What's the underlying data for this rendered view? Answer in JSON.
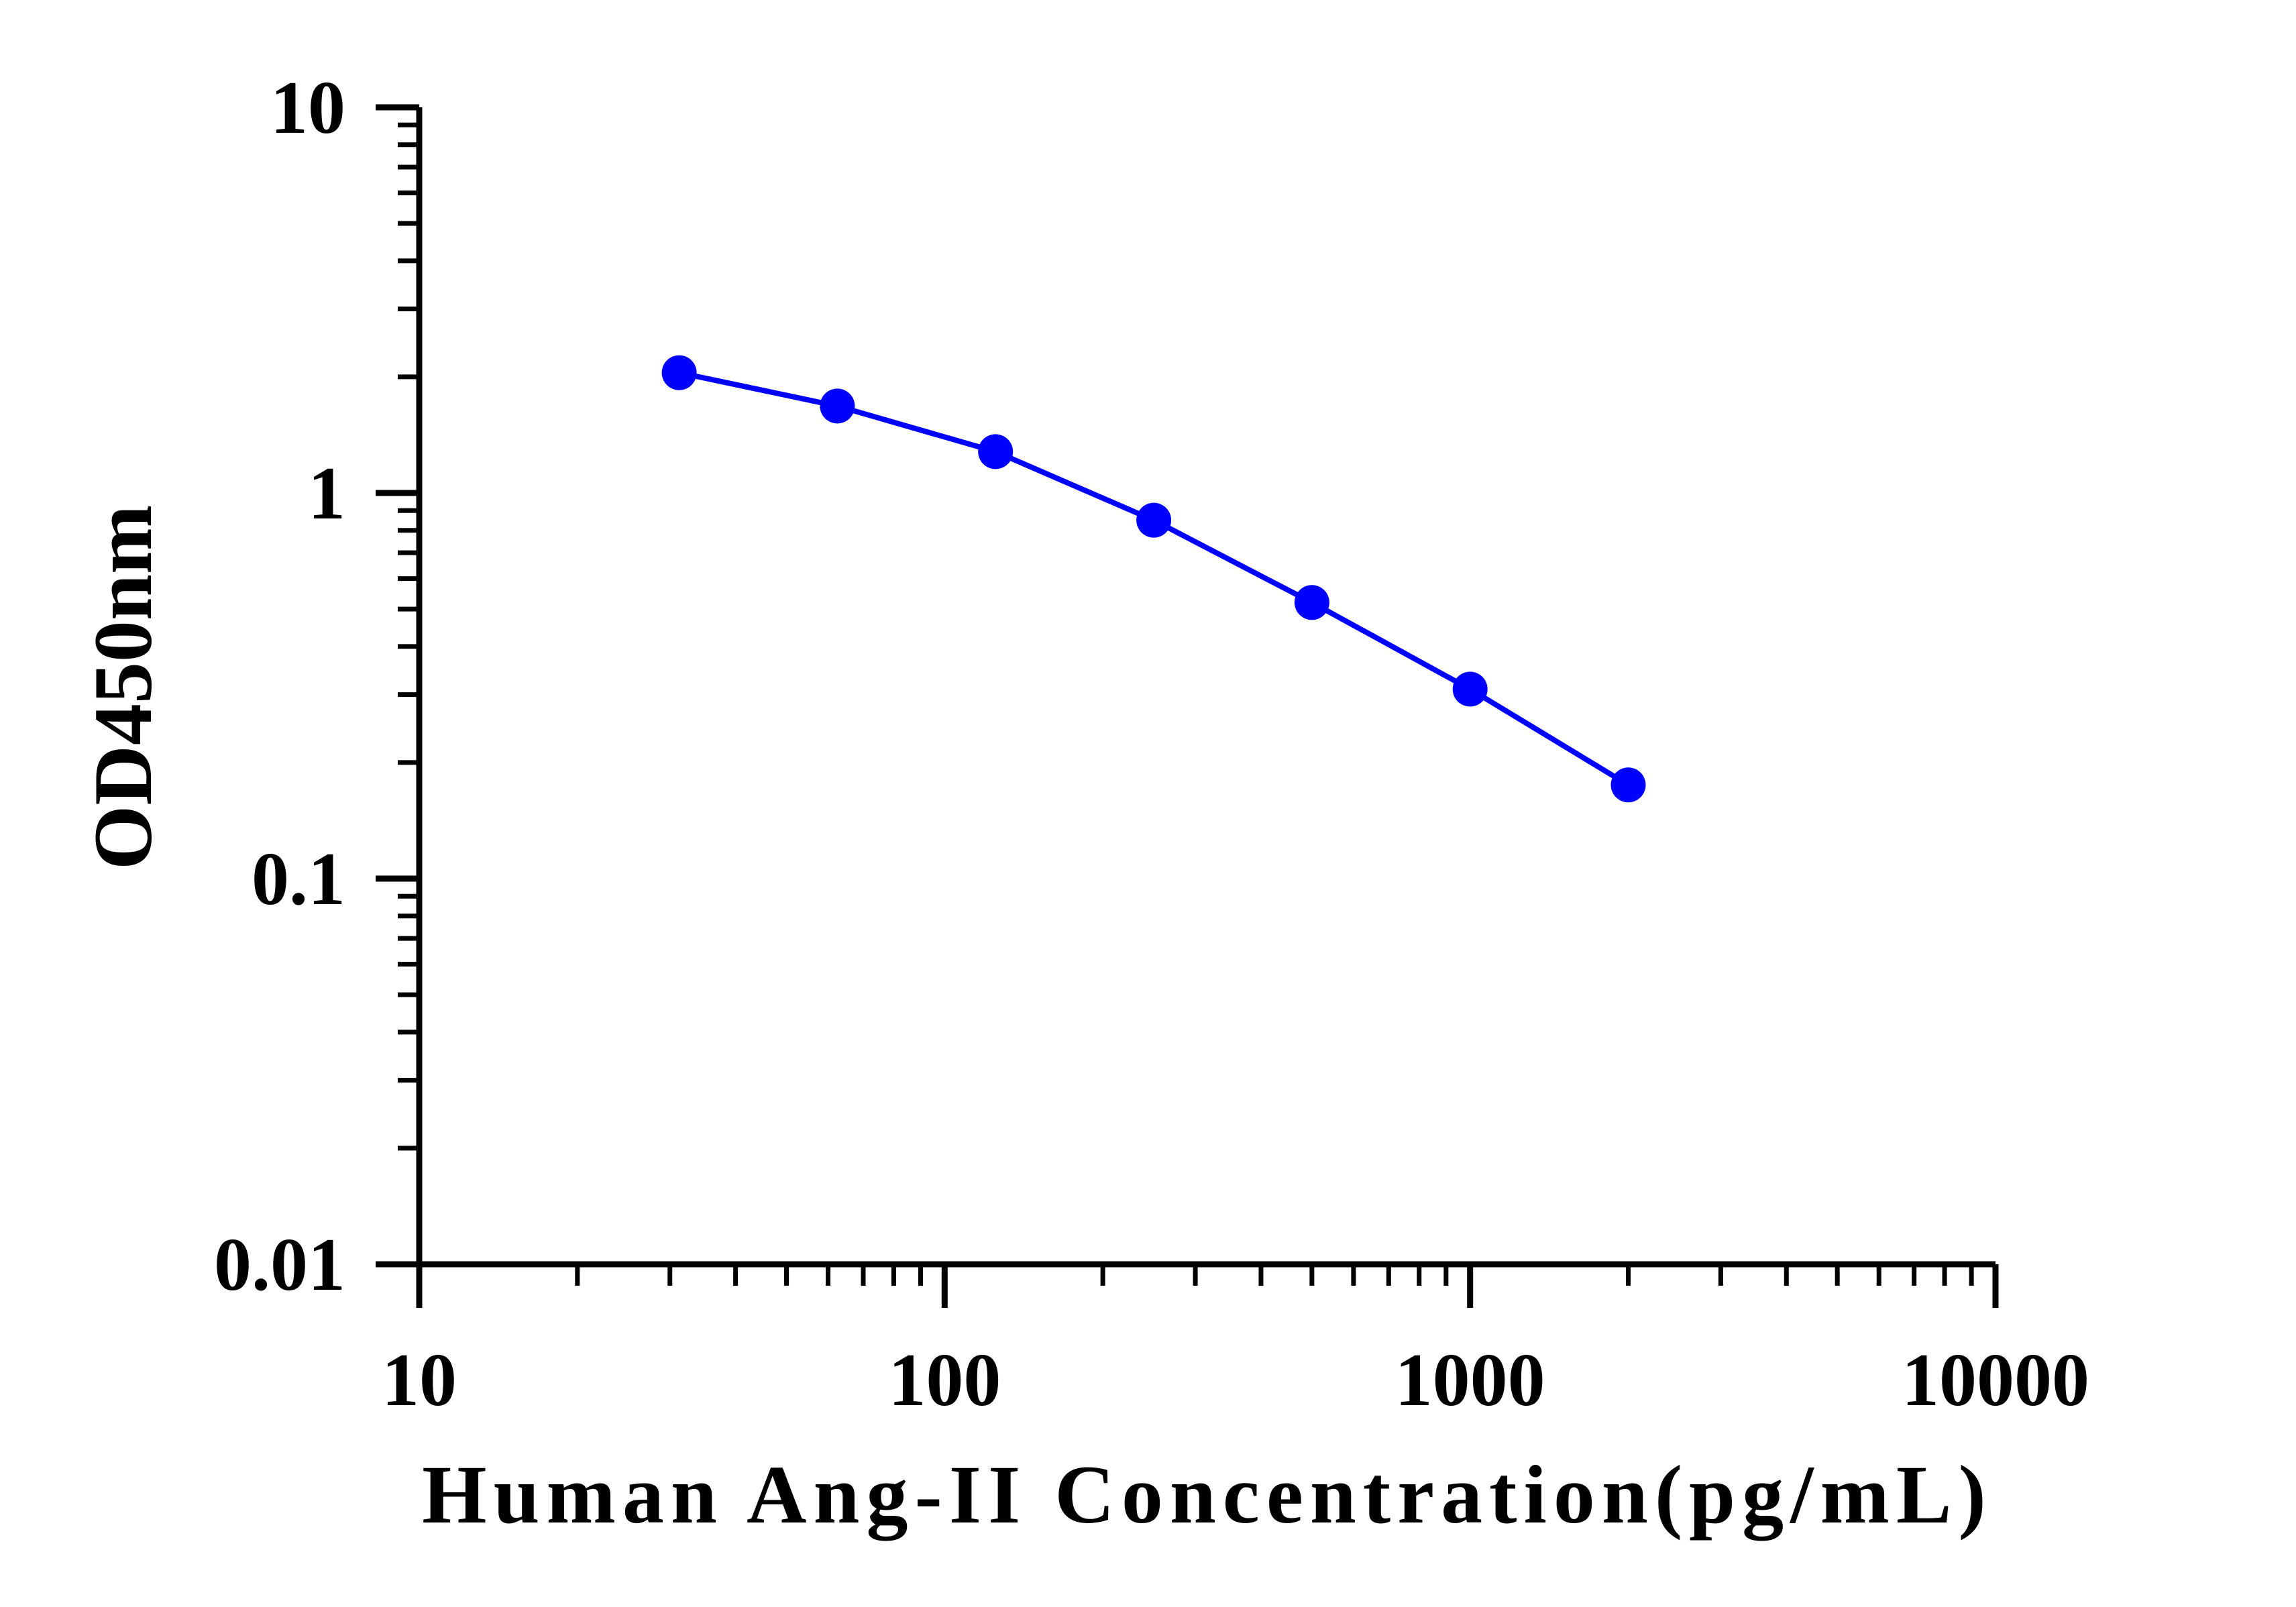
{
  "chart_data": {
    "type": "line",
    "title": "",
    "xlabel": "Human Ang-II Concentration(pg/mL)",
    "ylabel": "OD450nm",
    "xscale": "log",
    "yscale": "log",
    "xlim": [
      10,
      10000
    ],
    "ylim": [
      0.01,
      10
    ],
    "x_ticks": [
      {
        "value": 10,
        "label": "10"
      },
      {
        "value": 100,
        "label": "100"
      },
      {
        "value": 1000,
        "label": "1000"
      },
      {
        "value": 10000,
        "label": "10000"
      }
    ],
    "y_ticks": [
      {
        "value": 0.01,
        "label": "0.01"
      },
      {
        "value": 0.1,
        "label": "0.1"
      },
      {
        "value": 1,
        "label": "1"
      },
      {
        "value": 10,
        "label": "10"
      }
    ],
    "grid": false,
    "legend": "none",
    "series": [
      {
        "color": "#0000ff",
        "marker": "circle",
        "x": [
          31.25,
          62.5,
          125,
          250,
          500,
          1000,
          2000
        ],
        "y": [
          2.05,
          1.68,
          1.28,
          0.85,
          0.52,
          0.31,
          0.175
        ]
      }
    ]
  }
}
